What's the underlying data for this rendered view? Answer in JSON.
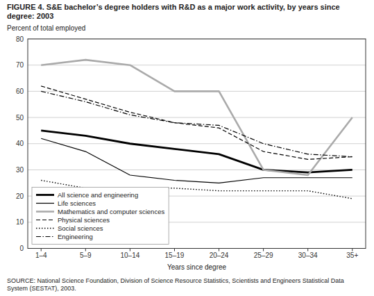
{
  "chart_data": {
    "type": "line",
    "title": "FIGURE 4.  S&E bachelor’s degree holders with R&D as a major work activity, by years since degree: 2003",
    "y_label": "Percent of total employed",
    "x_label": "Years since degree",
    "source": "SOURCE:  National Science Foundation, Division of Science Resource Statistics, Scientists and Engineers Statistical Data\nSystem (SESTAT), 2003.",
    "categories": [
      "1–4",
      "5–9",
      "10–14",
      "15–19",
      "20–24",
      "25–29",
      "30–34",
      "35+"
    ],
    "series": [
      {
        "name": "All science and engineering",
        "color": "#000000",
        "line_style": "solid",
        "values": [
          45,
          43,
          40,
          38,
          36,
          30,
          29,
          30
        ]
      },
      {
        "name": "Life sciences",
        "color": "#000000",
        "line_style": "solid",
        "values": [
          42,
          37,
          28,
          26,
          25,
          27,
          27,
          27
        ]
      },
      {
        "name": "Mathematics and computer sciences",
        "color": "#aaaaaa",
        "line_style": "solid",
        "values": [
          70,
          72,
          70,
          60,
          60,
          30,
          28,
          50
        ]
      },
      {
        "name": "Physical sciences",
        "color": "#000000",
        "line_style": "dashed",
        "values": [
          62,
          57,
          52,
          48,
          46,
          37,
          34,
          35
        ]
      },
      {
        "name": "Social sciences",
        "color": "#000000",
        "line_style": "dotted",
        "values": [
          26,
          23,
          23,
          23,
          22,
          22,
          22,
          19
        ]
      },
      {
        "name": "Engineering",
        "color": "#000000",
        "line_style": "dashdot",
        "values": [
          60,
          56,
          51,
          48,
          47,
          40,
          36,
          35
        ]
      }
    ],
    "ylim": [
      0,
      80
    ],
    "yticks": [
      0,
      10,
      20,
      30,
      40,
      50,
      60,
      70,
      80
    ],
    "grid": true,
    "legend": "lower left"
  }
}
